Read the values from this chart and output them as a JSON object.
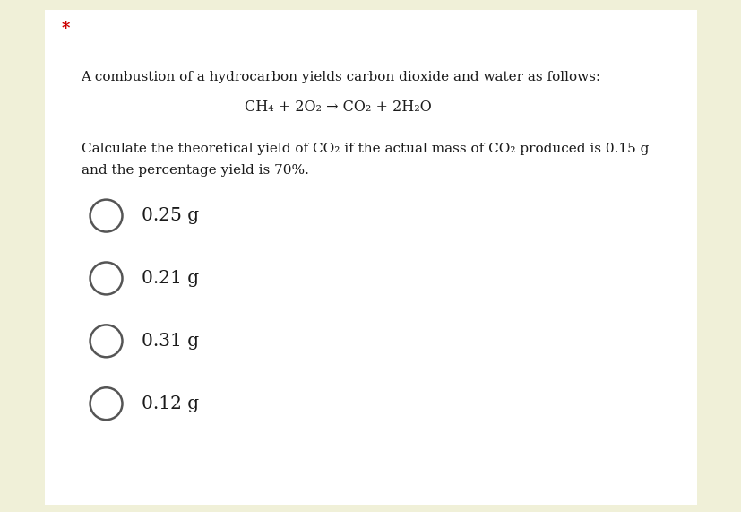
{
  "background_color": "#f0f0d8",
  "panel_color": "#ffffff",
  "star_text": "*",
  "star_color": "#cc0000",
  "question_line1": "A combustion of a hydrocarbon yields carbon dioxide and water as follows:",
  "equation_text": "CH₄ + 2O₂ → CO₂ + 2H₂O",
  "question_line3": "Calculate the theoretical yield of CO₂ if the actual mass of CO₂ produced is 0.15 g",
  "question_line4": "and the percentage yield is 70%.",
  "options": [
    "0.25 g",
    "0.21 g",
    "0.31 g",
    "0.12 g"
  ],
  "text_color": "#1a1a1a",
  "circle_color": "#555555",
  "font_size_question": 11.0,
  "font_size_equation": 11.5,
  "font_size_options": 14.5,
  "font_size_star": 13,
  "font_family": "DejaVu Serif"
}
